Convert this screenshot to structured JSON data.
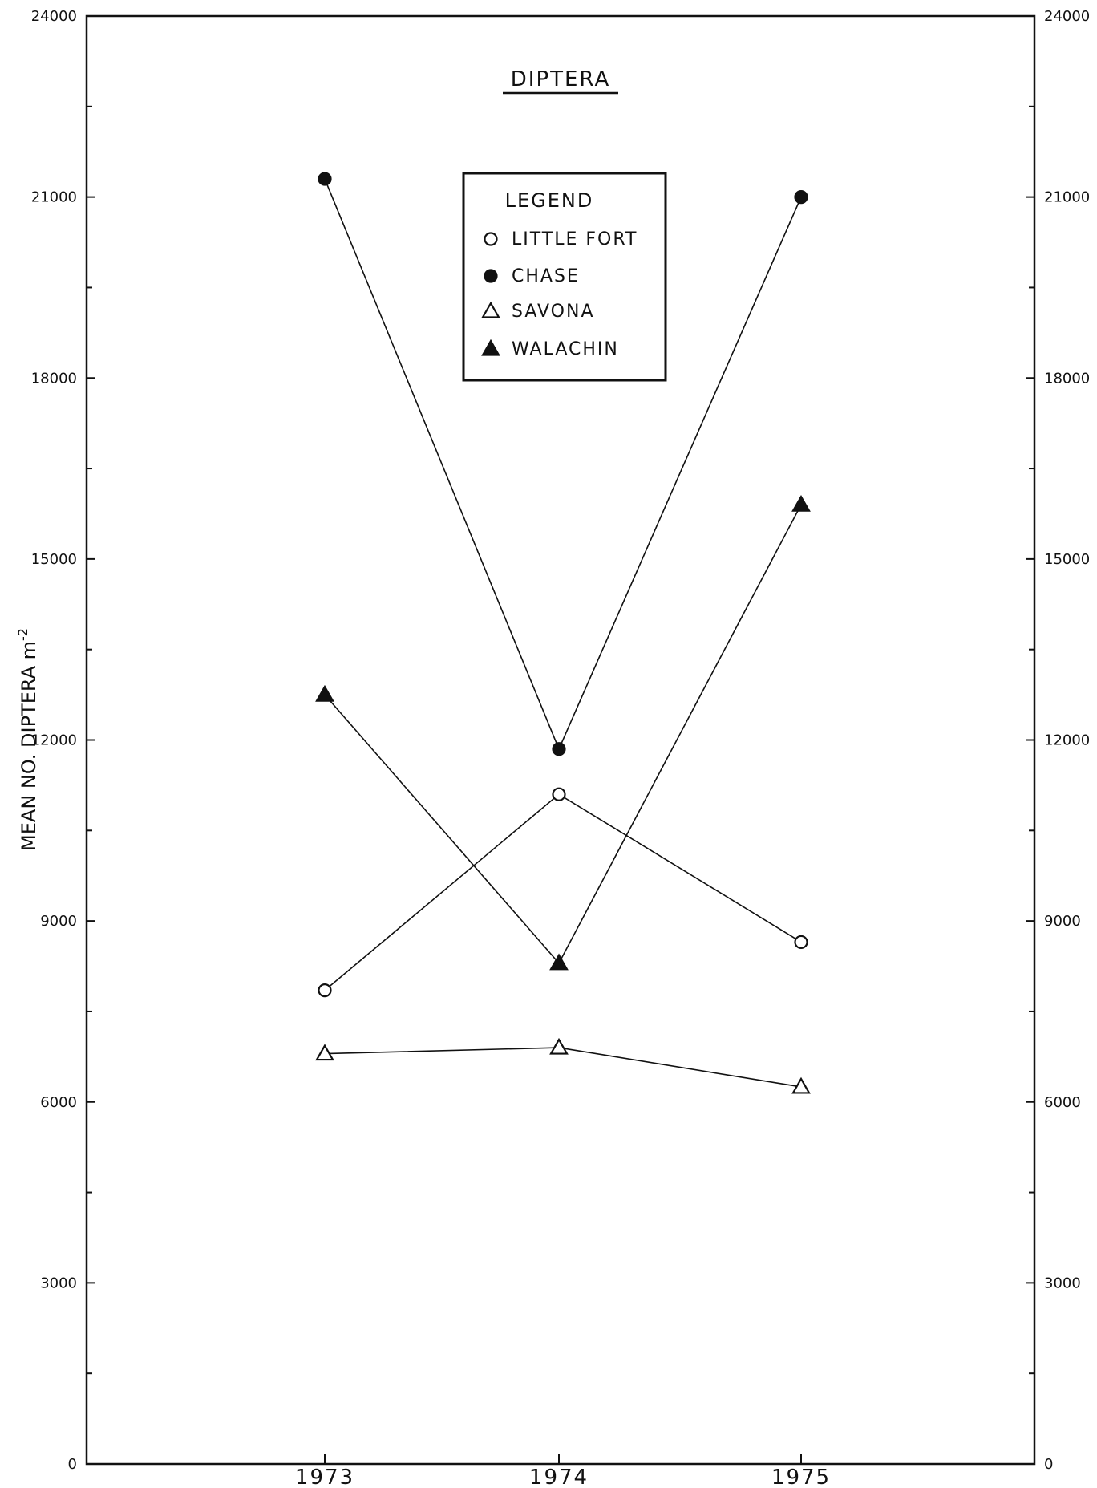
{
  "chart_data": {
    "type": "line",
    "title": "DIPTERA",
    "ylabel": "MEAN NO. DIPTERA m",
    "ylabel_sup": "-2",
    "xlabel": "",
    "categories": [
      "1973",
      "1974",
      "1975"
    ],
    "ylim": [
      0,
      24000
    ],
    "yticks": [
      0,
      3000,
      6000,
      9000,
      12000,
      15000,
      18000,
      21000,
      24000
    ],
    "ytick_labels": [
      "0",
      "3000",
      "6000",
      "9000",
      "12000",
      "15000",
      "18000",
      "21000",
      "24000"
    ],
    "grid": false,
    "legend_title": "LEGEND",
    "legend_position": "top-center",
    "series": [
      {
        "name": "LITTLE FORT",
        "marker": "circle-open",
        "values": [
          7850,
          11100,
          8650
        ]
      },
      {
        "name": "CHASE",
        "marker": "circle-filled",
        "values": [
          21300,
          11850,
          21000
        ]
      },
      {
        "name": "SAVONA",
        "marker": "triangle-open",
        "values": [
          6800,
          6900,
          6250
        ]
      },
      {
        "name": "WALACHIN",
        "marker": "triangle-filled",
        "values": [
          12750,
          8300,
          15900
        ]
      }
    ],
    "colors": {
      "ink": "#111111",
      "background": "#ffffff"
    }
  }
}
